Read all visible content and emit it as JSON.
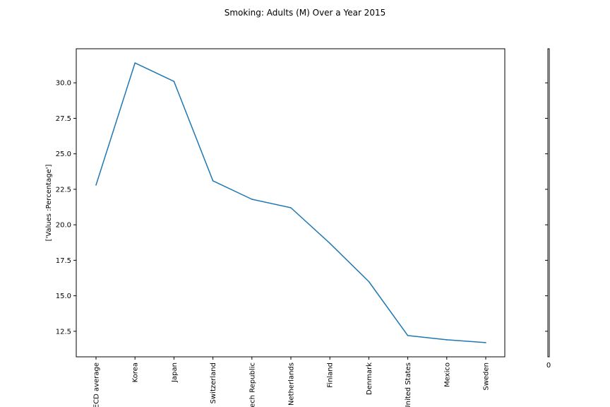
{
  "chart_data": {
    "type": "line",
    "title": "Smoking: Adults (M) Over a Year 2015",
    "xlabel": "",
    "ylabel": "['Values :Percentage']",
    "categories": [
      "OECD average",
      "Korea",
      "Japan",
      "Switzerland",
      "Czech Republic",
      "Netherlands",
      "Finland",
      "Denmark",
      "United States",
      "Mexico",
      "Sweden"
    ],
    "series": [
      {
        "values": [
          22.8,
          31.4,
          30.1,
          23.1,
          21.8,
          21.2,
          18.7,
          16.0,
          12.2,
          11.9,
          11.7
        ]
      }
    ],
    "ylim": [
      10.7,
      32.4
    ],
    "yticks": [
      12.5,
      15.0,
      17.5,
      20.0,
      22.5,
      25.0,
      27.5,
      30.0
    ],
    "ytick_labels": [
      "12.5",
      "15.0",
      "17.5",
      "20.0",
      "22.5",
      "25.0",
      "27.5",
      "30.0"
    ],
    "line_color": "#1f77b4",
    "grid": false,
    "colorbar": {
      "tick_label": "0"
    }
  }
}
